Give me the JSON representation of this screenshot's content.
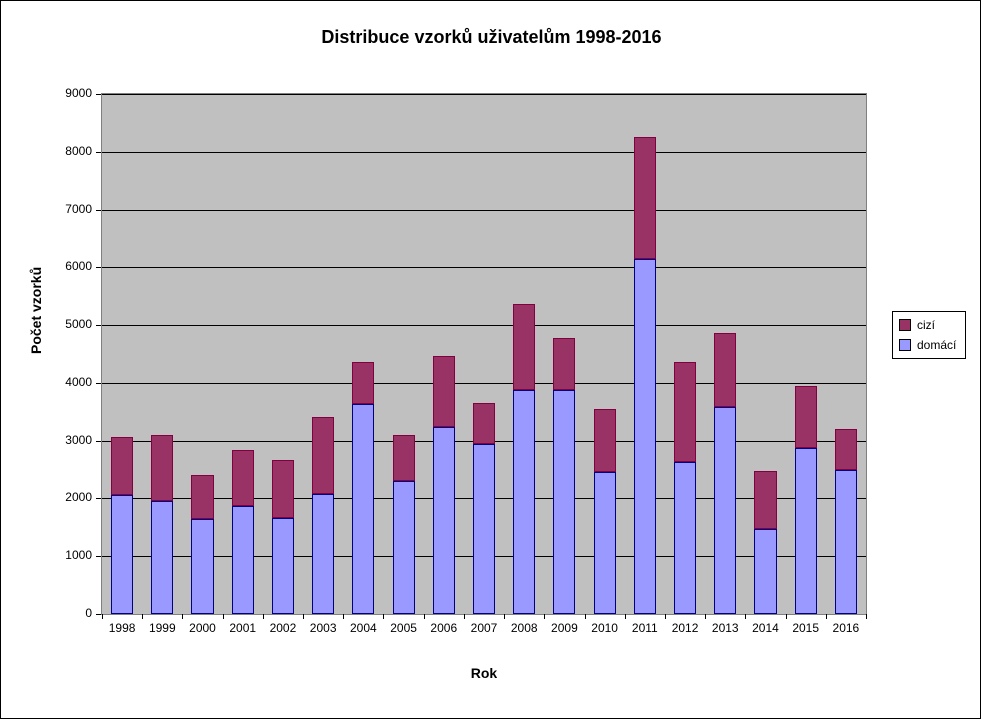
{
  "chart": {
    "type": "stacked-bar",
    "title": "Distribuce  vzorků  uživatelům  1998-2016",
    "title_fontsize": 18,
    "x_axis_title": "Rok",
    "y_axis_title": "Počet vzorků",
    "axis_title_fontsize": 14,
    "tick_fontsize": 12,
    "background_color": "#ffffff",
    "plot_background_color": "#c0c0c0",
    "grid_color": "#000000",
    "ylim": [
      0,
      9000
    ],
    "ytick_step": 1000,
    "categories": [
      "1998",
      "1999",
      "2000",
      "2001",
      "2002",
      "2003",
      "2004",
      "2005",
      "2006",
      "2007",
      "2008",
      "2009",
      "2010",
      "2011",
      "2012",
      "2013",
      "2014",
      "2015",
      "2016"
    ],
    "series": [
      {
        "name": "domácí",
        "color": "#9999ff",
        "border_color": "#000080",
        "values": [
          2060,
          1960,
          1650,
          1870,
          1670,
          2080,
          3640,
          2300,
          3230,
          2950,
          3870,
          3880,
          2460,
          6140,
          2630,
          3580,
          1470,
          2870,
          2500
        ]
      },
      {
        "name": "cizí",
        "color": "#993366",
        "border_color": "#800040",
        "values": [
          1000,
          1140,
          750,
          970,
          1000,
          1330,
          730,
          790,
          1230,
          700,
          1500,
          900,
          1090,
          2120,
          1740,
          1280,
          1010,
          1080,
          700
        ]
      }
    ],
    "bar_width_ratio": 0.55,
    "legend": {
      "items": [
        {
          "label": "cizí",
          "color": "#993366"
        },
        {
          "label": "domácí",
          "color": "#9999ff"
        }
      ]
    }
  }
}
